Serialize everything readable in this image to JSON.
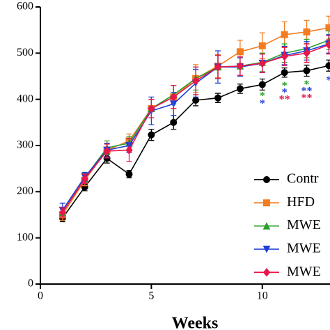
{
  "chart_data": {
    "type": "line",
    "x_label": "Weeks",
    "x": [
      1,
      2,
      3,
      4,
      5,
      6,
      7,
      8,
      9,
      10,
      11,
      12,
      13
    ],
    "xlim": [
      0,
      13.05
    ],
    "xticks": [
      0,
      5,
      10
    ],
    "ylim": [
      0,
      600
    ],
    "yticks": [
      0,
      100,
      200,
      300,
      400,
      500,
      600
    ],
    "series": [
      {
        "name": "Contr",
        "color": "#000000",
        "marker": "circle",
        "values": [
          143,
          210,
          272,
          238,
          323,
          350,
          398,
          403,
          423,
          432,
          458,
          462,
          473
        ],
        "errors": [
          8,
          8,
          10,
          8,
          12,
          15,
          12,
          10,
          10,
          12,
          10,
          12,
          12
        ]
      },
      {
        "name": "HFD",
        "color": "#f47c20",
        "marker": "square",
        "values": [
          150,
          225,
          290,
          310,
          380,
          405,
          445,
          472,
          503,
          516,
          540,
          546,
          555
        ],
        "errors": [
          12,
          12,
          15,
          15,
          20,
          25,
          30,
          25,
          25,
          28,
          28,
          25,
          25
        ]
      },
      {
        "name": "MWE",
        "color": "#2ca02c",
        "marker": "triangle-up",
        "values": [
          155,
          230,
          295,
          305,
          380,
          410,
          445,
          470,
          472,
          480,
          500,
          510,
          528
        ],
        "errors": [
          10,
          10,
          15,
          15,
          20,
          20,
          25,
          25,
          20,
          20,
          20,
          20,
          20
        ]
      },
      {
        "name": "MWE",
        "color": "#1f3fd6",
        "marker": "triangle-down",
        "values": [
          160,
          232,
          290,
          300,
          375,
          390,
          435,
          470,
          470,
          478,
          495,
          505,
          520
        ],
        "errors": [
          15,
          10,
          15,
          15,
          30,
          25,
          30,
          35,
          20,
          20,
          20,
          20,
          20
        ]
      },
      {
        "name": "MWE",
        "color": "#e8174b",
        "marker": "diamond",
        "values": [
          155,
          228,
          288,
          290,
          380,
          405,
          440,
          470,
          472,
          478,
          493,
          500,
          518
        ],
        "errors": [
          10,
          10,
          15,
          25,
          20,
          25,
          30,
          25,
          20,
          20,
          20,
          20,
          20
        ]
      }
    ],
    "annotations": [
      {
        "text": "*",
        "x": 10,
        "y": 412,
        "color": "#2ca02c"
      },
      {
        "text": "*",
        "x": 10,
        "y": 395,
        "color": "#1f3fd6"
      },
      {
        "text": "*",
        "x": 11,
        "y": 434,
        "color": "#2ca02c"
      },
      {
        "text": "*",
        "x": 11,
        "y": 419,
        "color": "#1f3fd6"
      },
      {
        "text": "**",
        "x": 11,
        "y": 404,
        "color": "#e8174b"
      },
      {
        "text": "*",
        "x": 12,
        "y": 437,
        "color": "#2ca02c"
      },
      {
        "text": "**",
        "x": 12,
        "y": 422,
        "color": "#1f3fd6"
      },
      {
        "text": "**",
        "x": 12,
        "y": 407,
        "color": "#e8174b"
      },
      {
        "text": "*",
        "x": 13,
        "y": 446,
        "color": "#1f3fd6"
      }
    ]
  }
}
